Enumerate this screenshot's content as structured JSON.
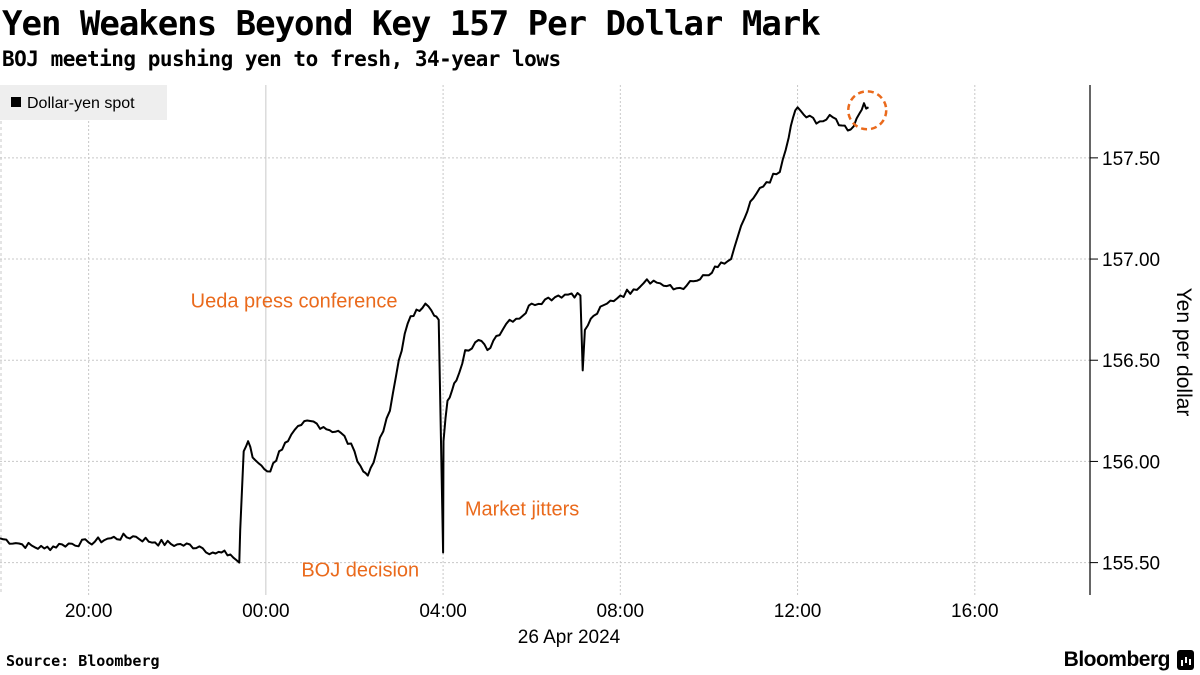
{
  "title": "Yen Weakens Beyond Key 157 Per Dollar Mark",
  "subtitle": "BOJ meeting pushing yen to fresh, 34-year lows",
  "source": "Source: Bloomberg",
  "brand": "Bloomberg",
  "colors": {
    "line": "#000000",
    "annotation": "#ea6a1c",
    "grid": "#c8c8c8",
    "legend_bg": "#eeeeee"
  },
  "chart_data": {
    "type": "line",
    "title": "Yen Weakens Beyond Key 157 Per Dollar Mark",
    "subtitle": "BOJ meeting pushing yen to fresh, 34-year lows",
    "ylabel": "Yen per dollar",
    "xlabel": "26 Apr 2024",
    "legend": [
      "Dollar-yen spot"
    ],
    "legend_position": "top-left",
    "y_axis_position": "right",
    "ylim": [
      155.34,
      157.86
    ],
    "xlim": [
      -6.0,
      18.6
    ],
    "x_unit": "hours relative to 00:00 26 Apr 2024",
    "x_ticks": [
      {
        "value": -4,
        "label": "20:00"
      },
      {
        "value": 0,
        "label": "00:00"
      },
      {
        "value": 4,
        "label": "04:00"
      },
      {
        "value": 8,
        "label": "08:00"
      },
      {
        "value": 12,
        "label": "12:00"
      },
      {
        "value": 16,
        "label": "16:00"
      }
    ],
    "y_ticks": [
      {
        "value": 155.5,
        "label": "155.50"
      },
      {
        "value": 156.0,
        "label": "156.00"
      },
      {
        "value": 156.5,
        "label": "156.50"
      },
      {
        "value": 157.0,
        "label": "157.00"
      },
      {
        "value": 157.5,
        "label": "157.50"
      }
    ],
    "series": [
      {
        "name": "Dollar-yen spot",
        "x": [
          -6.0,
          -5.5,
          -5.0,
          -4.6,
          -4.0,
          -3.5,
          -3.0,
          -2.5,
          -2.0,
          -1.5,
          -1.2,
          -0.8,
          -0.6,
          -0.58,
          -0.5,
          -0.4,
          -0.3,
          -0.1,
          0.1,
          0.3,
          0.5,
          0.8,
          1.0,
          1.3,
          1.7,
          2.0,
          2.2,
          2.3,
          2.5,
          2.8,
          3.0,
          3.2,
          3.4,
          3.6,
          3.8,
          3.9,
          4.0,
          4.01,
          4.1,
          4.2,
          4.3,
          4.5,
          4.8,
          5.0,
          5.2,
          5.5,
          5.8,
          6.0,
          6.3,
          6.6,
          6.9,
          7.1,
          7.15,
          7.2,
          7.4,
          7.7,
          8.0,
          8.3,
          8.6,
          8.9,
          9.2,
          9.5,
          9.8,
          10.0,
          10.2,
          10.5,
          10.8,
          11.0,
          11.3,
          11.6,
          11.8,
          11.9,
          12.0,
          12.2,
          12.5,
          12.8,
          13.0,
          13.2,
          13.4,
          13.5,
          13.6
        ],
        "values": [
          155.62,
          155.59,
          155.57,
          155.59,
          155.6,
          155.62,
          155.63,
          155.6,
          155.59,
          155.58,
          155.55,
          155.54,
          155.5,
          155.66,
          156.05,
          156.1,
          156.02,
          155.98,
          155.95,
          156.05,
          156.1,
          156.18,
          156.2,
          156.17,
          156.14,
          156.05,
          155.95,
          155.93,
          156.05,
          156.25,
          156.5,
          156.68,
          156.75,
          156.78,
          156.72,
          156.7,
          155.55,
          156.1,
          156.3,
          156.35,
          156.4,
          156.55,
          156.6,
          156.55,
          156.62,
          156.7,
          156.72,
          156.78,
          156.8,
          156.82,
          156.83,
          156.82,
          156.45,
          156.65,
          156.72,
          156.78,
          156.82,
          156.85,
          156.9,
          156.88,
          156.85,
          156.87,
          156.9,
          156.92,
          156.96,
          157.0,
          157.2,
          157.3,
          157.38,
          157.43,
          157.6,
          157.7,
          157.75,
          157.7,
          157.68,
          157.7,
          157.66,
          157.64,
          157.72,
          157.77,
          157.75
        ]
      }
    ],
    "annotations": [
      {
        "text": "Ueda press conference",
        "x": 3.3,
        "y": 156.76
      },
      {
        "text": "BOJ decision",
        "x": -0.6,
        "y": 155.5
      },
      {
        "text": "Market jitters",
        "x": 4.0,
        "y": 155.55
      },
      {
        "text": "",
        "x": 13.55,
        "y": 157.73,
        "kind": "highlight-circle"
      }
    ]
  }
}
